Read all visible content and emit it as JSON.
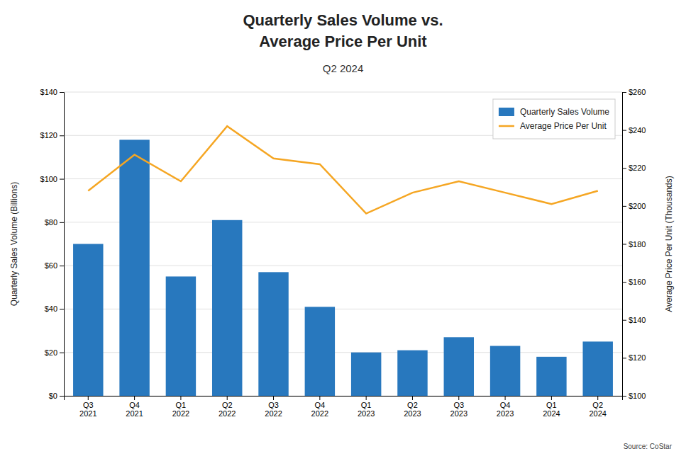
{
  "chart_data": {
    "type": "bar",
    "title": "Quarterly Sales Volume vs.\nAverage Price Per Unit",
    "subtitle": "Q2 2024",
    "source": "Source: CoStar",
    "categories": [
      "Q3\n2021",
      "Q4\n2021",
      "Q1\n2022",
      "Q2\n2022",
      "Q3\n2022",
      "Q4\n2022",
      "Q1\n2023",
      "Q2\n2023",
      "Q3\n2023",
      "Q4\n2023",
      "Q1\n2024",
      "Q2\n2024"
    ],
    "series": [
      {
        "name": "Quarterly Sales Volume",
        "type": "bar",
        "color": "#2878BE",
        "values": [
          70,
          118,
          55,
          81,
          57,
          41,
          20,
          21,
          27,
          23,
          18,
          25
        ]
      },
      {
        "name": "Average Price Per Unit",
        "type": "line",
        "color": "#F5A623",
        "axis": "y2",
        "values": [
          208,
          227,
          213,
          242,
          225,
          222,
          196,
          207,
          213,
          207,
          201,
          208
        ]
      }
    ],
    "ylabel": "Quarterly Sales Volume (Billions)",
    "y2label": "Average Price Per Unit (Thousands)",
    "ylim": [
      0,
      140
    ],
    "yticks": [
      {
        "value": 0,
        "label": "$0"
      },
      {
        "value": 20,
        "label": "$20"
      },
      {
        "value": 40,
        "label": "$40"
      },
      {
        "value": 60,
        "label": "$60"
      },
      {
        "value": 80,
        "label": "$80"
      },
      {
        "value": 100,
        "label": "$100"
      },
      {
        "value": 120,
        "label": "$120"
      },
      {
        "value": 140,
        "label": "$140"
      }
    ],
    "y2lim": [
      100,
      260
    ],
    "y2ticks": [
      {
        "value": 100,
        "label": "$100"
      },
      {
        "value": 120,
        "label": "$120"
      },
      {
        "value": 140,
        "label": "$140"
      },
      {
        "value": 160,
        "label": "$160"
      },
      {
        "value": 180,
        "label": "$180"
      },
      {
        "value": 200,
        "label": "$200"
      },
      {
        "value": 220,
        "label": "$220"
      },
      {
        "value": 240,
        "label": "$240"
      },
      {
        "value": 260,
        "label": "$260"
      }
    ],
    "grid": true,
    "legend": "upper right"
  }
}
